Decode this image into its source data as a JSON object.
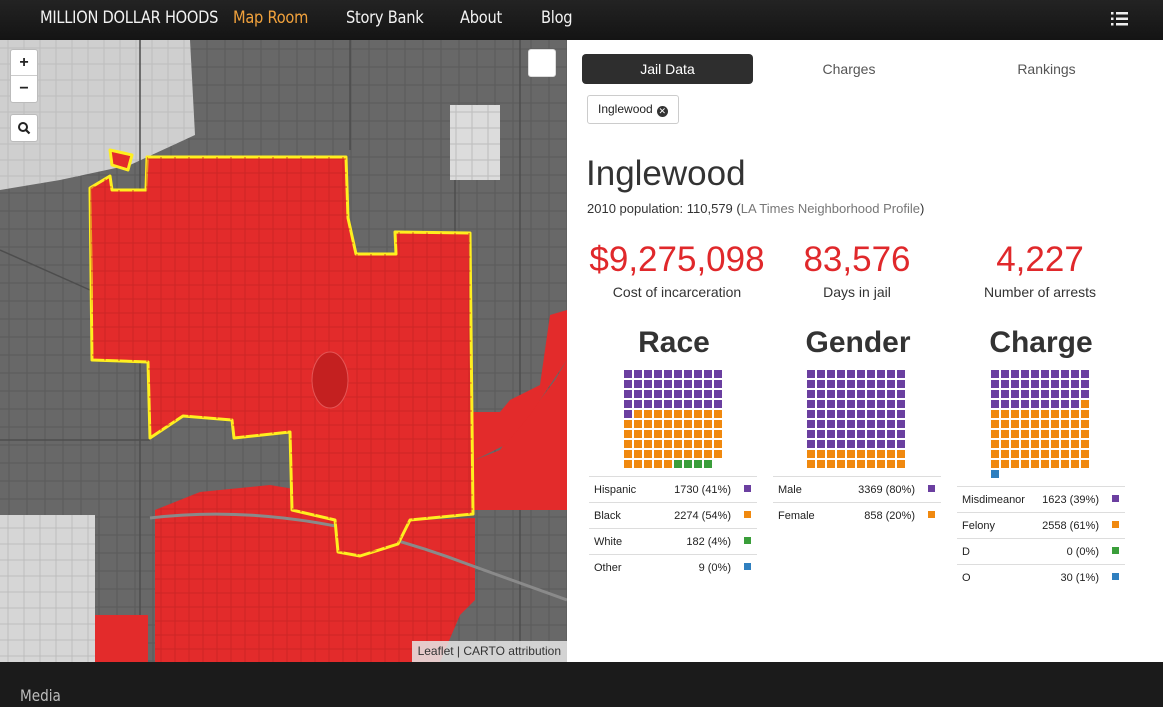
{
  "nav": {
    "brand": "MILLION DOLLAR HOODS",
    "items": [
      {
        "label": "Map Room",
        "active": true
      },
      {
        "label": "Story Bank",
        "active": false
      },
      {
        "label": "About",
        "active": false
      },
      {
        "label": "Blog",
        "active": false
      }
    ],
    "menu_icon": "list-icon"
  },
  "map": {
    "zoom_in": "+",
    "zoom_out": "−",
    "search_icon": "search-icon",
    "attribution": {
      "leaflet": "Leaflet",
      "separator": " | ",
      "carto": "CARTO attribution"
    },
    "colors": {
      "highlight_fill": "#e32b2b",
      "outline": "#ffef1f",
      "base": "#666666"
    }
  },
  "panel": {
    "tabs": [
      {
        "label": "Jail Data",
        "active": true
      },
      {
        "label": "Charges",
        "active": false
      },
      {
        "label": "Rankings",
        "active": false
      }
    ],
    "filter_chip": {
      "label": "Inglewood",
      "icon": "close-circle-icon"
    },
    "place": "Inglewood",
    "population_prefix": "2010 population: 110,579 (",
    "population_link": "LA Times Neighborhood Profile",
    "population_suffix": ")",
    "stats": [
      {
        "value": "$9,275,098",
        "label": "Cost of incarceration"
      },
      {
        "value": "83,576",
        "label": "Days in jail"
      },
      {
        "value": "4,227",
        "label": "Number of arrests"
      }
    ],
    "colors": {
      "purple": "#6b3fa0",
      "orange": "#f0890f",
      "green": "#3a9e3a",
      "blue": "#2f7fbf",
      "stat_red": "#e0282b"
    },
    "breakdowns": [
      {
        "title": "Race",
        "rows": [
          {
            "label": "Hispanic",
            "value": "1730 (41%)",
            "color": "purple",
            "percent": 41
          },
          {
            "label": "Black",
            "value": "2274 (54%)",
            "color": "orange",
            "percent": 54
          },
          {
            "label": "White",
            "value": "182 (4%)",
            "color": "green",
            "percent": 4
          },
          {
            "label": "Other",
            "value": "9 (0%)",
            "color": "blue",
            "percent": 0
          }
        ]
      },
      {
        "title": "Gender",
        "rows": [
          {
            "label": "Male",
            "value": "3369 (80%)",
            "color": "purple",
            "percent": 80
          },
          {
            "label": "Female",
            "value": "858 (20%)",
            "color": "orange",
            "percent": 20
          }
        ]
      },
      {
        "title": "Charge",
        "rows": [
          {
            "label": "Misdimeanor",
            "value": "1623 (39%)",
            "color": "purple",
            "percent": 39
          },
          {
            "label": "Felony",
            "value": "2558 (61%)",
            "color": "orange",
            "percent": 61
          },
          {
            "label": "D",
            "value": "0 (0%)",
            "color": "green",
            "percent": 0
          },
          {
            "label": "O",
            "value": "30 (1%)",
            "color": "blue",
            "percent": 1
          }
        ]
      }
    ]
  },
  "footer": {
    "link": "Media"
  }
}
